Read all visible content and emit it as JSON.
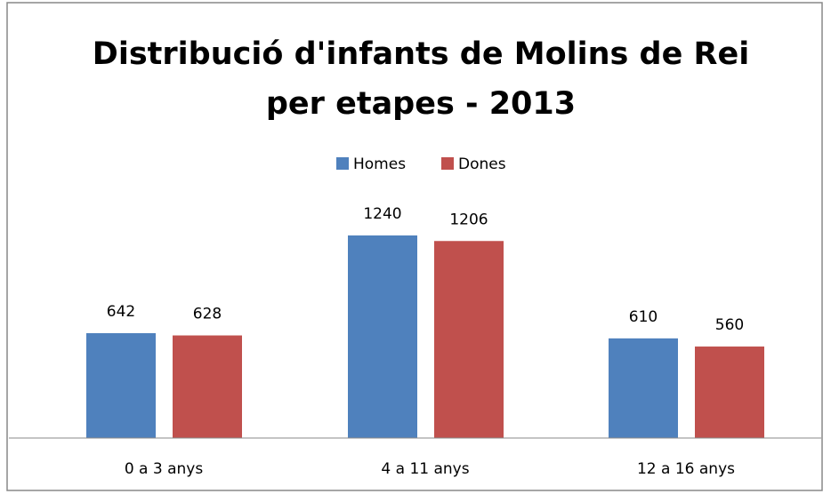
{
  "chart_data": {
    "type": "bar",
    "title": [
      "Distribució d'infants de Molins de Rei",
      "per etapes - 2013"
    ],
    "categories": [
      "0 a 3 anys",
      "4 a 11 anys",
      "12 a 16 anys"
    ],
    "series": [
      {
        "name": "Homes",
        "color": "#4f81bd",
        "values": [
          642,
          1240,
          610
        ]
      },
      {
        "name": "Dones",
        "color": "#c0504d",
        "values": [
          628,
          1206,
          560
        ]
      }
    ],
    "legend": "top"
  }
}
